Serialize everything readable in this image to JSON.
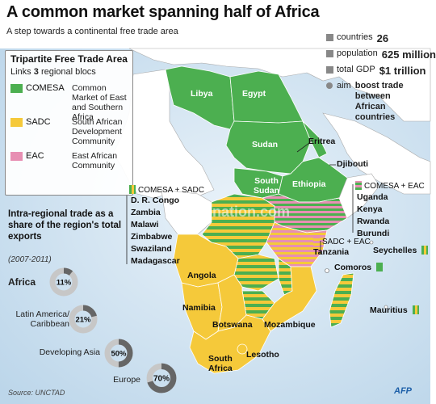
{
  "title": "A common market spanning half of Africa",
  "subtitle": "A step towards a continental free trade area",
  "stats": [
    {
      "label": "countries",
      "value": "26"
    },
    {
      "label": "population",
      "value": "625 million"
    },
    {
      "label": "total GDP",
      "value": "$1 trillion"
    }
  ],
  "aim": {
    "label": "aim",
    "value": "boost trade between African countries"
  },
  "legend": {
    "title": "Tripartite Free Trade Area",
    "sub_prefix": "Links",
    "sub_count": "3",
    "sub_suffix": "regional blocs",
    "items": [
      {
        "code": "COMESA",
        "name": "Common Market of East and Southern Africa",
        "color": "#4caf50"
      },
      {
        "code": "SADC",
        "name": "South African Development Community",
        "color": "#f5c93a"
      },
      {
        "code": "EAC",
        "name": "East African Community",
        "color": "#e78fb3"
      }
    ]
  },
  "intra_trade": {
    "title": "Intra-regional trade as a share of the region's total exports",
    "years": "(2007-2011)",
    "regions": [
      {
        "name": "Africa",
        "value": 11,
        "label": "11%"
      },
      {
        "name": "Latin America/ Caribbean",
        "value": 21,
        "label": "21%"
      },
      {
        "name": "Developing Asia",
        "value": 50,
        "label": "50%"
      },
      {
        "name": "Europe",
        "value": 70,
        "label": "70%"
      }
    ]
  },
  "blocs": {
    "comesa_sadc": {
      "label": "COMESA + SADC",
      "countries": [
        "D. R. Congo",
        "Zambia",
        "Malawi",
        "Zimbabwe",
        "Swaziland",
        "Madagascar"
      ]
    },
    "comesa_eac": {
      "label": "COMESA + EAC",
      "countries": [
        "Uganda",
        "Kenya",
        "Rwanda",
        "Burundi"
      ]
    },
    "sadc_eac": {
      "label": "SADC + EAC",
      "countries": [
        "Tanzania"
      ]
    }
  },
  "map_labels": {
    "libya": "Libya",
    "egypt": "Egypt",
    "sudan": "Sudan",
    "eritrea": "Eritrea",
    "djibouti": "Djibouti",
    "south_sudan": "South Sudan",
    "ethiopia": "Ethiopia",
    "angola": "Angola",
    "namibia": "Namibia",
    "botswana": "Botswana",
    "mozambique": "Mozambique",
    "lesotho": "Lesotho",
    "south_africa": "South Africa",
    "seychelles": "Seychelles",
    "comoros": "Comoros",
    "mauritius": "Mauritius"
  },
  "watermark": "afpnation.com",
  "source": "Source: UNCTAD",
  "credit": "AFP",
  "colors": {
    "comesa": "#4caf50",
    "sadc": "#f5c93a",
    "eac": "#e78fb3",
    "land": "#ffffff",
    "sea": "#d6e8f4"
  }
}
